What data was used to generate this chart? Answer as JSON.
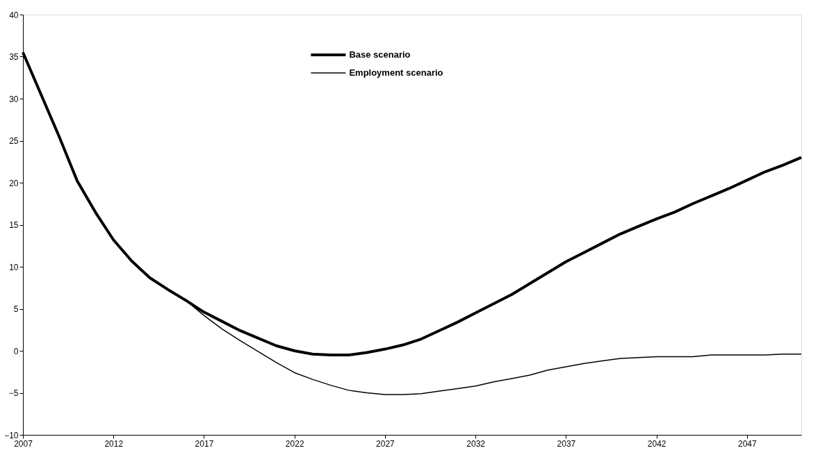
{
  "chart_data": {
    "type": "line",
    "x": [
      2007,
      2008,
      2009,
      2010,
      2011,
      2012,
      2013,
      2014,
      2015,
      2016,
      2017,
      2018,
      2019,
      2020,
      2021,
      2022,
      2023,
      2024,
      2025,
      2026,
      2027,
      2028,
      2029,
      2030,
      2031,
      2032,
      2033,
      2034,
      2035,
      2036,
      2037,
      2038,
      2039,
      2040,
      2041,
      2042,
      2043,
      2044,
      2045,
      2046,
      2047,
      2048,
      2049,
      2050
    ],
    "series": [
      {
        "name": "Base scenario",
        "color": "#000000",
        "values": [
          35.5,
          30.5,
          25.5,
          20.2,
          16.5,
          13.2,
          10.7,
          8.7,
          7.3,
          6.0,
          4.6,
          3.5,
          2.4,
          1.5,
          0.6,
          0.0,
          -0.4,
          -0.5,
          -0.5,
          -0.2,
          0.2,
          0.7,
          1.4,
          2.4,
          3.4,
          4.5,
          5.6,
          6.7,
          8.0,
          9.3,
          10.6,
          11.7,
          12.8,
          13.9,
          14.8,
          15.7,
          16.5,
          17.5,
          18.4,
          19.3,
          20.3,
          21.3,
          22.1,
          23.0
        ]
      },
      {
        "name": "Employment scenario",
        "color": "#000000",
        "values": [
          35.5,
          30.5,
          25.5,
          20.2,
          16.5,
          13.2,
          10.7,
          8.7,
          7.3,
          6.0,
          4.2,
          2.6,
          1.2,
          -0.1,
          -1.4,
          -2.6,
          -3.4,
          -4.1,
          -4.7,
          -5.0,
          -5.2,
          -5.2,
          -5.1,
          -4.8,
          -4.5,
          -4.2,
          -3.7,
          -3.3,
          -2.9,
          -2.3,
          -1.9,
          -1.5,
          -1.2,
          -0.9,
          -0.8,
          -0.7,
          -0.7,
          -0.7,
          -0.5,
          -0.5,
          -0.5,
          -0.5,
          -0.4,
          -0.4
        ]
      }
    ],
    "xlim": [
      2007,
      2050
    ],
    "xticks": [
      2007,
      2012,
      2017,
      2022,
      2027,
      2032,
      2037,
      2042,
      2047
    ],
    "ylim": [
      -10,
      40
    ],
    "yticks": [
      -10,
      -5,
      0,
      5,
      10,
      15,
      20,
      25,
      30,
      35,
      40
    ],
    "grid": false,
    "legend": "top",
    "marker": "none",
    "line_style": "solid"
  }
}
